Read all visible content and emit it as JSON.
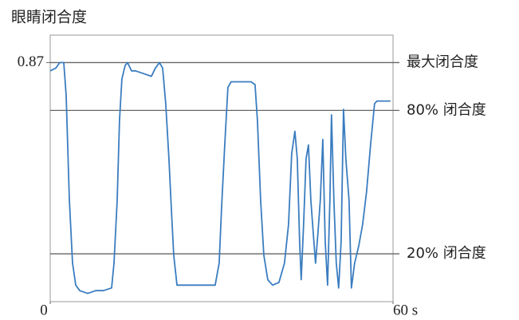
{
  "chart_data": {
    "type": "line",
    "y_label": "眼睛闭合度",
    "x": [
      0,
      0.98,
      1.67,
      2.37,
      2.79,
      3.35,
      3.91,
      4.46,
      5.16,
      6.56,
      7.95,
      9.34,
      10.74,
      11.16,
      11.72,
      12.13,
      12.55,
      13.11,
      13.53,
      14.23,
      14.92,
      16.32,
      17.71,
      18.41,
      19.11,
      19.67,
      20.22,
      20.78,
      21.2,
      21.62,
      22.18,
      23.29,
      24.69,
      26.78,
      28.87,
      29.57,
      29.99,
      30.54,
      31.1,
      31.66,
      33.05,
      35.15,
      35.84,
      36.26,
      36.82,
      37.38,
      38.08,
      38.91,
      40.03,
      41.0,
      41.7,
      42.26,
      42.82,
      43.24,
      43.65,
      43.93,
      44.35,
      44.77,
      45.19,
      45.61,
      46.03,
      46.44,
      46.86,
      47.28,
      47.7,
      48.12,
      48.54,
      48.95,
      49.23,
      49.65,
      50.07,
      50.49,
      50.91,
      51.33,
      51.74,
      52.3,
      52.72,
      53.28,
      53.97,
      54.67,
      55.37,
      56.07,
      56.76,
      57.18,
      58.16,
      59.55
    ],
    "series": [
      {
        "color": "#3a7dc0",
        "values": [
          0.84,
          0.85,
          0.87,
          0.87,
          0.75,
          0.37,
          0.14,
          0.06,
          0.04,
          0.03,
          0.04,
          0.04,
          0.05,
          0.14,
          0.37,
          0.66,
          0.81,
          0.86,
          0.87,
          0.84,
          0.84,
          0.83,
          0.82,
          0.85,
          0.87,
          0.85,
          0.72,
          0.52,
          0.34,
          0.17,
          0.06,
          0.06,
          0.06,
          0.06,
          0.06,
          0.14,
          0.34,
          0.57,
          0.78,
          0.8,
          0.8,
          0.8,
          0.79,
          0.66,
          0.37,
          0.17,
          0.08,
          0.06,
          0.07,
          0.14,
          0.28,
          0.54,
          0.62,
          0.52,
          0.22,
          0.08,
          0.28,
          0.52,
          0.57,
          0.37,
          0.25,
          0.14,
          0.25,
          0.37,
          0.59,
          0.22,
          0.06,
          0.37,
          0.68,
          0.37,
          0.14,
          0.05,
          0.22,
          0.7,
          0.52,
          0.37,
          0.05,
          0.14,
          0.2,
          0.28,
          0.4,
          0.57,
          0.72,
          0.73,
          0.73,
          0.73
        ]
      }
    ],
    "xlim": [
      0,
      60
    ],
    "xticks": [
      0,
      {
        "value": 60,
        "label": "60 s"
      }
    ],
    "ylim": [
      0,
      0.97
    ],
    "yticks": [
      0.87
    ],
    "reference_lines": [
      {
        "value": 0.87,
        "label": "最大闭合度"
      },
      {
        "value": 0.696,
        "label": "80% 闭合度"
      },
      {
        "value": 0.174,
        "label": "20% 闭合度"
      }
    ],
    "reference_color": "#666666"
  }
}
